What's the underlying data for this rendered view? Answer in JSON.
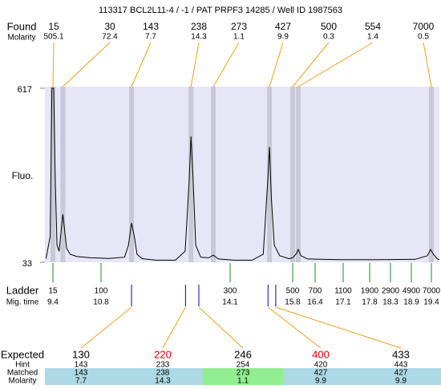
{
  "header": {
    "title": "113317  BCL2L11-4 / -1 / PAT PRPF3 14285 / Well ID 1987563"
  },
  "found": {
    "label": "Found",
    "molarity_label": "Molarity",
    "sizes": [
      15,
      30,
      143,
      238,
      273,
      427,
      500,
      554,
      7000
    ],
    "molarity": [
      505.1,
      72.4,
      7.7,
      14.3,
      1.1,
      9.9,
      0.3,
      1.4,
      0.5
    ],
    "x": [
      9.4,
      9.69,
      11.58,
      13.1,
      13.67,
      15.17,
      15.8,
      15.95,
      19.4
    ]
  },
  "chart_data": {
    "type": "line",
    "y_label": "Fluo.",
    "color": "#000000",
    "x": [
      9.2,
      9.32,
      9.37,
      9.42,
      9.47,
      9.52,
      9.58,
      9.65,
      9.69,
      9.74,
      9.8,
      9.9,
      10.1,
      10.5,
      11.0,
      11.4,
      11.5,
      11.58,
      11.65,
      11.72,
      11.85,
      12.2,
      12.7,
      12.95,
      13.05,
      13.1,
      13.15,
      13.22,
      13.35,
      13.55,
      13.67,
      13.8,
      14.2,
      14.7,
      15.0,
      15.12,
      15.17,
      15.22,
      15.3,
      15.45,
      15.7,
      15.8,
      15.9,
      15.95,
      16.02,
      16.2,
      17.0,
      18.0,
      19.0,
      19.3,
      19.38,
      19.45,
      19.55,
      19.6
    ],
    "values": [
      45,
      120,
      617,
      617,
      300,
      90,
      70,
      150,
      194,
      140,
      80,
      60,
      52,
      48,
      46,
      50,
      90,
      165,
      120,
      60,
      45,
      40,
      40,
      70,
      300,
      455,
      320,
      90,
      50,
      48,
      57,
      44,
      40,
      40,
      60,
      300,
      420,
      250,
      90,
      55,
      45,
      48,
      62,
      76,
      55,
      44,
      42,
      42,
      43,
      55,
      76,
      60,
      44,
      42
    ],
    "ylim": [
      33,
      617
    ],
    "yticks": [
      33,
      617
    ]
  },
  "ladder": {
    "label": "Ladder",
    "mig_label": "Mig. time",
    "sizes": [
      15,
      100,
      300,
      500,
      700,
      1100,
      1900,
      2900,
      4900,
      7000
    ],
    "mig_times": [
      9.4,
      10.8,
      14.1,
      15.8,
      16.4,
      17.1,
      17.8,
      18.3,
      18.9,
      19.4
    ]
  },
  "expected": {
    "label": "Expected",
    "hint_label": "Hint",
    "matched_label": "Matched",
    "molarity_label": "Molarity",
    "sizes": [
      130,
      220,
      246,
      400,
      433
    ],
    "flagged": [
      false,
      true,
      false,
      true,
      false
    ],
    "hint": [
      143,
      233,
      254,
      420,
      443
    ],
    "matched": [
      143,
      238,
      273,
      427,
      427
    ],
    "matched_highlight": [
      false,
      false,
      true,
      false,
      false
    ],
    "molarity": [
      7.7,
      14.3,
      1.1,
      9.9,
      9.9
    ],
    "x": [
      11.58,
      12.96,
      13.3,
      15.13,
      15.34
    ]
  }
}
